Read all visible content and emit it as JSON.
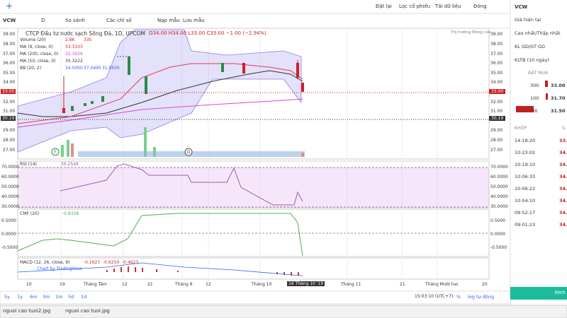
{
  "top_bar": {
    "buttons": [
      "Đặt lại",
      "Lọc cổ phiếu",
      "Tải dữ liệu",
      "Đóng"
    ]
  },
  "toolbar": {
    "interval": "D",
    "items": [
      "So sánh",
      "Các chỉ số",
      "Nạp mẫu",
      "Lưu mẫu"
    ]
  },
  "symbol": "VCW",
  "legend": {
    "title": "CTCP Đầu tư nước sạch Sông Đà, 1D, UPCOM",
    "ohlc": "O34.00 H34.00 L33.00 C33.00 −1.00 (−2.94%)",
    "market_status": "Thị trường Đóng cửa",
    "indicators": [
      {
        "name": "Volume (20)",
        "values": [
          "2.8K",
          "335"
        ]
      },
      {
        "name": "MA (9, close, 0)",
        "values": [
          "33.3333"
        ]
      },
      {
        "name": "MA (200, close, 0)",
        "values": [
          "32.3936"
        ]
      },
      {
        "name": "MA (50, close, 0)",
        "values": [
          "35.3222"
        ]
      },
      {
        "name": "BB (20, 2)",
        "values": [
          "34.5000",
          "37.0495",
          "31.9505"
        ]
      }
    ]
  },
  "price_axis": [
    "39.00",
    "38.00",
    "37.00",
    "36.00",
    "35.00",
    "34.00",
    "32.00",
    "31.00",
    "29.00",
    "28.00",
    "27.00"
  ],
  "current_price": "33.00",
  "prev_close": "30.19",
  "rsi": {
    "name": "RSI (14)",
    "value": "36.2548",
    "axis": [
      "70.0000",
      "60.0000",
      "50.0000",
      "40.0000",
      "30.0000"
    ]
  },
  "cmf": {
    "name": "CMF (20)",
    "value": "-0.8358",
    "axis": [
      "0.5000",
      "0.0000",
      "-0.5000"
    ]
  },
  "macd": {
    "name": "MACD (12, 26, close, 9)",
    "values": [
      "-0.1627",
      "-0.6250",
      "-0.4623"
    ],
    "credit": "Chart by TradingView"
  },
  "x_axis": [
    "10",
    "19",
    "Tháng Tám",
    "12",
    "21",
    "Tháng 9",
    "12",
    "Tháng 10",
    "Tháng 11",
    "21",
    "Tháng Mười hai",
    "20"
  ],
  "x_cursor": "16 Tháng 10 '19",
  "bottom_bar": {
    "ranges": [
      "5y",
      "1y",
      "6m",
      "3m",
      "1m",
      "5d",
      "1d"
    ],
    "clock": "15:03:10 (UTC+7)",
    "options": [
      "%",
      "log",
      "tự động"
    ]
  },
  "right_panel": {
    "symbol": "VCW",
    "rows": [
      "Giá hiện tại",
      "Cao nhất/Thấp nhất",
      "KL GD/GT GD",
      "KLTB (10 ngày)"
    ],
    "bid_header": "ĐẶT MUA",
    "bids": [
      {
        "volume": "300",
        "price": "33.00"
      },
      {
        "volume": "100",
        "price": "31.70"
      },
      {
        "volume": "2,000",
        "price": "31.50"
      }
    ],
    "trades_header": "KHỚP",
    "trades_col": "G",
    "trades": [
      [
        "14:18:20",
        "33."
      ],
      [
        "10:23:02",
        "34."
      ],
      [
        "10:19:10",
        "34."
      ],
      [
        "10:06:33",
        "34."
      ],
      [
        "10:06:22",
        "34."
      ],
      [
        "10:04:10",
        "34."
      ],
      [
        "09:52:17",
        "34."
      ],
      [
        "09:01:23",
        "34."
      ]
    ],
    "button": "Xem"
  },
  "taskbar": [
    "nguoi cao tuoi2.jpg",
    "nguoi cao tuoi.jpg"
  ]
}
